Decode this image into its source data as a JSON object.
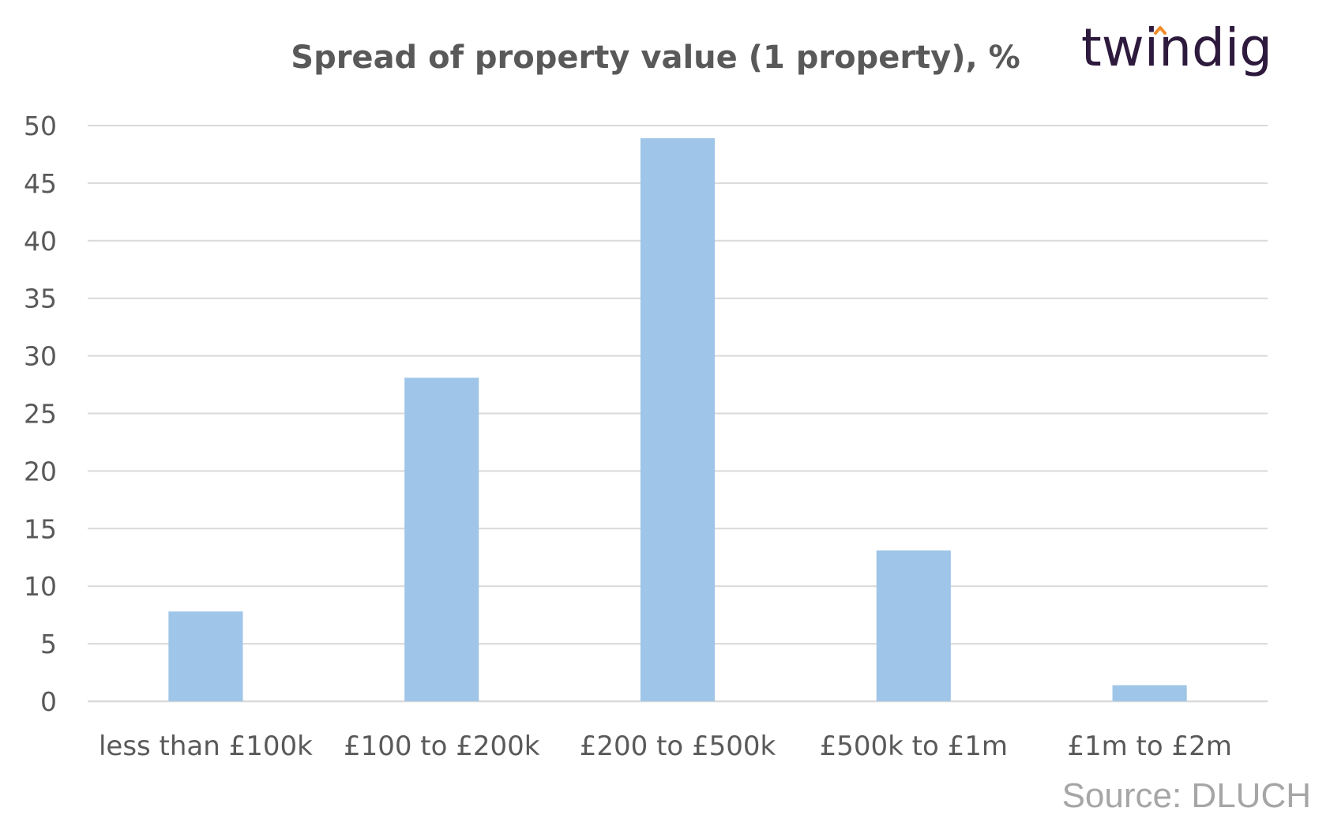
{
  "logo": {
    "text": "twindig",
    "accent_color": "#f28c28",
    "text_color": "#2e1a3d"
  },
  "source": "Source: DLUCH",
  "chart_data": {
    "type": "bar",
    "title": "Spread of property value (1 property), %",
    "xlabel": "",
    "ylabel": "",
    "categories": [
      "less than £100k",
      "£100 to £200k",
      "£200 to £500k",
      "£500k to £1m",
      "£1m to £2m"
    ],
    "values": [
      7.8,
      28.1,
      48.9,
      13.1,
      1.4
    ],
    "ylim": [
      0,
      50
    ],
    "yticks": [
      0,
      5,
      10,
      15,
      20,
      25,
      30,
      35,
      40,
      45,
      50
    ],
    "grid": true,
    "legend": "none",
    "bar_color": "#9fc5e8"
  }
}
